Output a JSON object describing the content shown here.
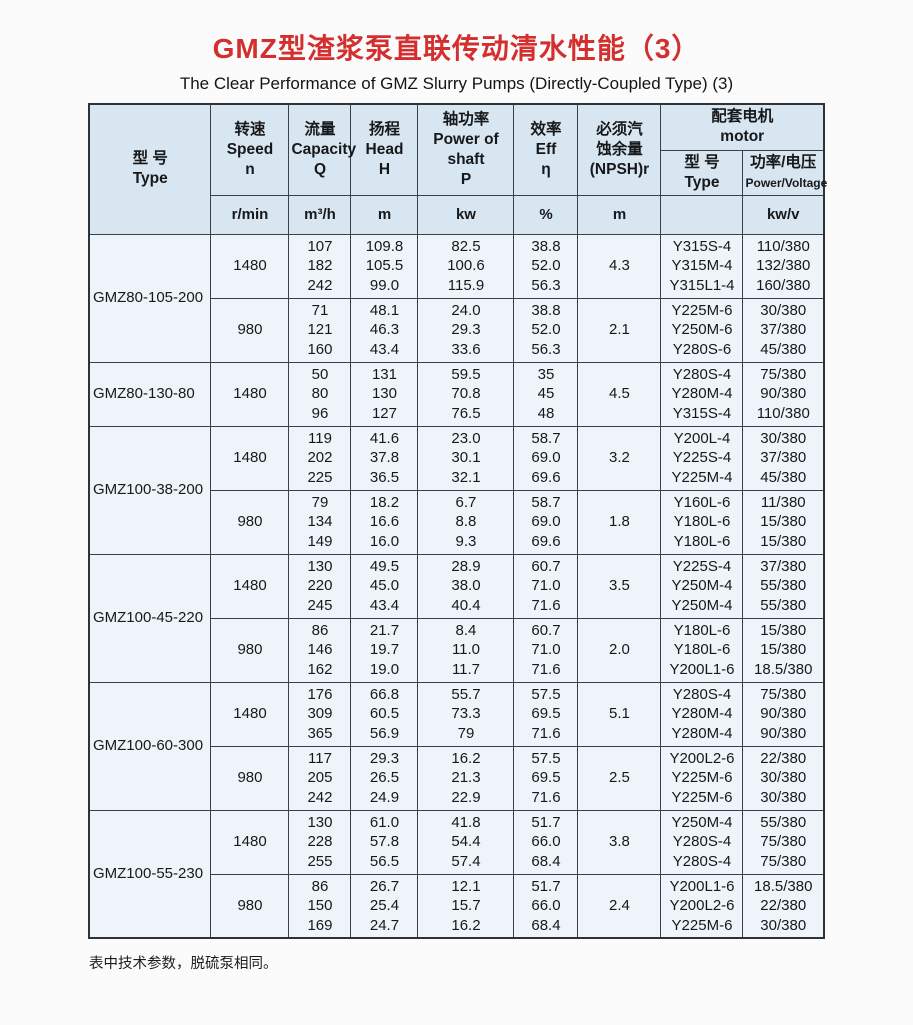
{
  "page": {
    "title_zh": "GMZ型渣浆泵直联传动清水性能（3）",
    "title_en": "The Clear Performance of GMZ Slurry Pumps (Directly-Coupled Type) (3)",
    "footnote": "表中技术参数，脱硫泵相同。",
    "accent_red": "#d42f2f",
    "header_bg": "#d7e6f1",
    "cell_bg": "#eef4f9"
  },
  "table": {
    "headers": {
      "type": {
        "zh": "型  号",
        "en": "Type"
      },
      "speed": {
        "zh": "转速",
        "en": "Speed",
        "sym": "n",
        "unit": "r/min"
      },
      "capacity": {
        "zh": "流量",
        "en": "Capacity",
        "sym": "Q",
        "unit": "m³/h"
      },
      "head": {
        "zh": "扬程",
        "en": "Head",
        "sym": "H",
        "unit": "m"
      },
      "power": {
        "zh": "轴功率",
        "en": "Power of shaft",
        "sym": "P",
        "unit": "kw"
      },
      "eff": {
        "zh": "效率",
        "en": "Eff",
        "sym": "η",
        "unit": "%"
      },
      "npsh": {
        "zh": "必须汽蚀余量",
        "en": "(NPSH)r",
        "unit": "m"
      },
      "motor": {
        "zh": "配套电机",
        "en": "motor"
      },
      "motor_type": {
        "zh": "型  号",
        "en": "Type",
        "unit": ""
      },
      "motor_power": {
        "zh": "功率/电压",
        "en": "Power/Voltage",
        "unit": "kw/v"
      }
    },
    "groups": [
      {
        "type": "GMZ80-105-200",
        "rows": [
          {
            "speed": "1480",
            "capacity": [
              "107",
              "182",
              "242"
            ],
            "head": [
              "109.8",
              "105.5",
              "99.0"
            ],
            "power": [
              "82.5",
              "100.6",
              "115.9"
            ],
            "eff": [
              "38.8",
              "52.0",
              "56.3"
            ],
            "npsh": "4.3",
            "motor_type": [
              "Y315S-4",
              "Y315M-4",
              "Y315L1-4"
            ],
            "motor_power": [
              "110/380",
              "132/380",
              "160/380"
            ]
          },
          {
            "speed": "980",
            "capacity": [
              "71",
              "121",
              "160"
            ],
            "head": [
              "48.1",
              "46.3",
              "43.4"
            ],
            "power": [
              "24.0",
              "29.3",
              "33.6"
            ],
            "eff": [
              "38.8",
              "52.0",
              "56.3"
            ],
            "npsh": "2.1",
            "motor_type": [
              "Y225M-6",
              "Y250M-6",
              "Y280S-6"
            ],
            "motor_power": [
              "30/380",
              "37/380",
              "45/380"
            ]
          }
        ]
      },
      {
        "type": "GMZ80-130-80",
        "rows": [
          {
            "speed": "1480",
            "capacity": [
              "50",
              "80",
              "96"
            ],
            "head": [
              "131",
              "130",
              "127"
            ],
            "power": [
              "59.5",
              "70.8",
              "76.5"
            ],
            "eff": [
              "35",
              "45",
              "48"
            ],
            "npsh": "4.5",
            "motor_type": [
              "Y280S-4",
              "Y280M-4",
              "Y315S-4"
            ],
            "motor_power": [
              "75/380",
              "90/380",
              "110/380"
            ]
          }
        ]
      },
      {
        "type": "GMZ100-38-200",
        "rows": [
          {
            "speed": "1480",
            "capacity": [
              "119",
              "202",
              "225"
            ],
            "head": [
              "41.6",
              "37.8",
              "36.5"
            ],
            "power": [
              "23.0",
              "30.1",
              "32.1"
            ],
            "eff": [
              "58.7",
              "69.0",
              "69.6"
            ],
            "npsh": "3.2",
            "motor_type": [
              "Y200L-4",
              "Y225S-4",
              "Y225M-4"
            ],
            "motor_power": [
              "30/380",
              "37/380",
              "45/380"
            ]
          },
          {
            "speed": "980",
            "capacity": [
              "79",
              "134",
              "149"
            ],
            "head": [
              "18.2",
              "16.6",
              "16.0"
            ],
            "power": [
              "6.7",
              "8.8",
              "9.3"
            ],
            "eff": [
              "58.7",
              "69.0",
              "69.6"
            ],
            "npsh": "1.8",
            "motor_type": [
              "Y160L-6",
              "Y180L-6",
              "Y180L-6"
            ],
            "motor_power": [
              "11/380",
              "15/380",
              "15/380"
            ]
          }
        ]
      },
      {
        "type": "GMZ100-45-220",
        "rows": [
          {
            "speed": "1480",
            "capacity": [
              "130",
              "220",
              "245"
            ],
            "head": [
              "49.5",
              "45.0",
              "43.4"
            ],
            "power": [
              "28.9",
              "38.0",
              "40.4"
            ],
            "eff": [
              "60.7",
              "71.0",
              "71.6"
            ],
            "npsh": "3.5",
            "motor_type": [
              "Y225S-4",
              "Y250M-4",
              "Y250M-4"
            ],
            "motor_power": [
              "37/380",
              "55/380",
              "55/380"
            ]
          },
          {
            "speed": "980",
            "capacity": [
              "86",
              "146",
              "162"
            ],
            "head": [
              "21.7",
              "19.7",
              "19.0"
            ],
            "power": [
              "8.4",
              "11.0",
              "11.7"
            ],
            "eff": [
              "60.7",
              "71.0",
              "71.6"
            ],
            "npsh": "2.0",
            "motor_type": [
              "Y180L-6",
              "Y180L-6",
              "Y200L1-6"
            ],
            "motor_power": [
              "15/380",
              "15/380",
              "18.5/380"
            ]
          }
        ]
      },
      {
        "type": "GMZ100-60-300",
        "rows": [
          {
            "speed": "1480",
            "capacity": [
              "176",
              "309",
              "365"
            ],
            "head": [
              "66.8",
              "60.5",
              "56.9"
            ],
            "power": [
              "55.7",
              "73.3",
              "79"
            ],
            "eff": [
              "57.5",
              "69.5",
              "71.6"
            ],
            "npsh": "5.1",
            "motor_type": [
              "Y280S-4",
              "Y280M-4",
              "Y280M-4"
            ],
            "motor_power": [
              "75/380",
              "90/380",
              "90/380"
            ]
          },
          {
            "speed": "980",
            "capacity": [
              "117",
              "205",
              "242"
            ],
            "head": [
              "29.3",
              "26.5",
              "24.9"
            ],
            "power": [
              "16.2",
              "21.3",
              "22.9"
            ],
            "eff": [
              "57.5",
              "69.5",
              "71.6"
            ],
            "npsh": "2.5",
            "motor_type": [
              "Y200L2-6",
              "Y225M-6",
              "Y225M-6"
            ],
            "motor_power": [
              "22/380",
              "30/380",
              "30/380"
            ]
          }
        ]
      },
      {
        "type": "GMZ100-55-230",
        "rows": [
          {
            "speed": "1480",
            "capacity": [
              "130",
              "228",
              "255"
            ],
            "head": [
              "61.0",
              "57.8",
              "56.5"
            ],
            "power": [
              "41.8",
              "54.4",
              "57.4"
            ],
            "eff": [
              "51.7",
              "66.0",
              "68.4"
            ],
            "npsh": "3.8",
            "motor_type": [
              "Y250M-4",
              "Y280S-4",
              "Y280S-4"
            ],
            "motor_power": [
              "55/380",
              "75/380",
              "75/380"
            ]
          },
          {
            "speed": "980",
            "capacity": [
              "86",
              "150",
              "169"
            ],
            "head": [
              "26.7",
              "25.4",
              "24.7"
            ],
            "power": [
              "12.1",
              "15.7",
              "16.2"
            ],
            "eff": [
              "51.7",
              "66.0",
              "68.4"
            ],
            "npsh": "2.4",
            "motor_type": [
              "Y200L1-6",
              "Y200L2-6",
              "Y225M-6"
            ],
            "motor_power": [
              "18.5/380",
              "22/380",
              "30/380"
            ]
          }
        ]
      }
    ]
  }
}
